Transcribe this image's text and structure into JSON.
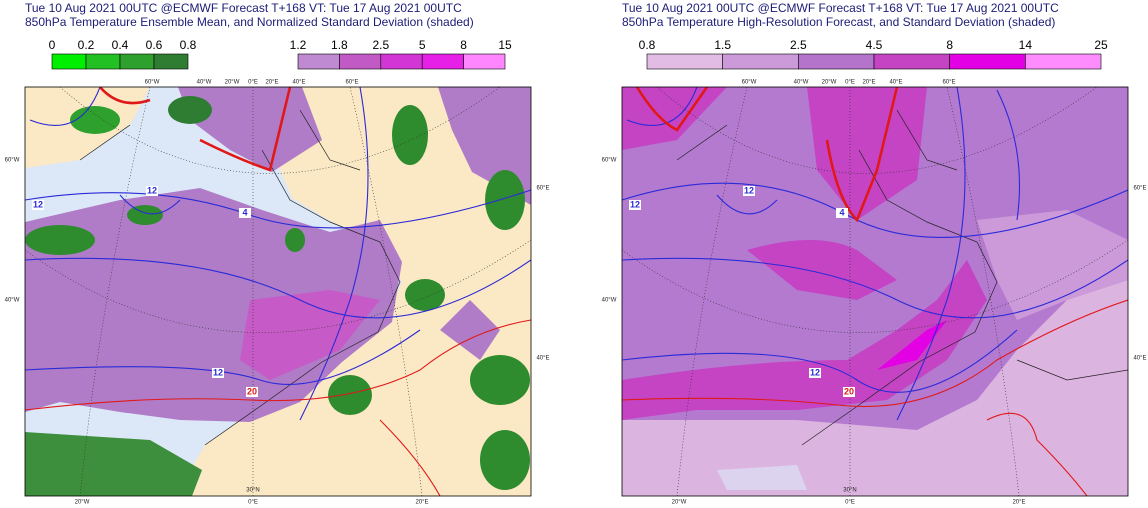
{
  "panels": [
    {
      "title": [
        "Tue 10 Aug 2021 00UTC @ECMWF Forecast T+168 VT: Tue 17 Aug 2021 00UTC",
        "850hPa Temperature Ensemble Mean, and Normalized Standard Deviation (shaded)"
      ],
      "colorbars": [
        {
          "labels": [
            "0",
            "0.2",
            "0.4",
            "0.6",
            "0.8"
          ],
          "colors": [
            "#00ee00",
            "#22c022",
            "#2ea02e",
            "#2e7d32"
          ]
        },
        {
          "labels": [
            "1.2",
            "1.8",
            "2.5",
            "5",
            "8",
            "15"
          ],
          "colors": [
            "#c08ad2",
            "#c25ac6",
            "#d236d4",
            "#e620e6",
            "#ff86ff"
          ]
        }
      ],
      "map_labels": [
        "60°W",
        "40°W",
        "20°W",
        "0°E",
        "20°E",
        "40°E",
        "60°E",
        "60°W",
        "40°W",
        "60°E",
        "40°E",
        "20°W",
        "0°E",
        "20°E",
        "30°N",
        "12",
        "12",
        "4",
        "12",
        "20"
      ]
    },
    {
      "title": [
        "Tue 10 Aug 2021 00UTC @ECMWF Forecast T+168 VT: Tue 17 Aug 2021 00UTC",
        "850hPa Temperature High-Resolution Forecast, and Standard Deviation (shaded)"
      ],
      "colorbars": [
        {
          "labels": [
            "0.8",
            "1.5",
            "2.5",
            "4.5",
            "8",
            "14",
            "25"
          ],
          "colors": [
            "#e2bce4",
            "#cc9ad8",
            "#b474cc",
            "#c444c4",
            "#e400e4",
            "#ff8cff"
          ]
        }
      ],
      "map_labels": [
        "60°W",
        "40°W",
        "20°W",
        "0°E",
        "20°E",
        "40°E",
        "60°E",
        "60°W",
        "40°W",
        "60°E",
        "40°E",
        "20°W",
        "0°E",
        "20°E",
        "30°N",
        "12",
        "12",
        "4",
        "12",
        "20"
      ]
    }
  ]
}
